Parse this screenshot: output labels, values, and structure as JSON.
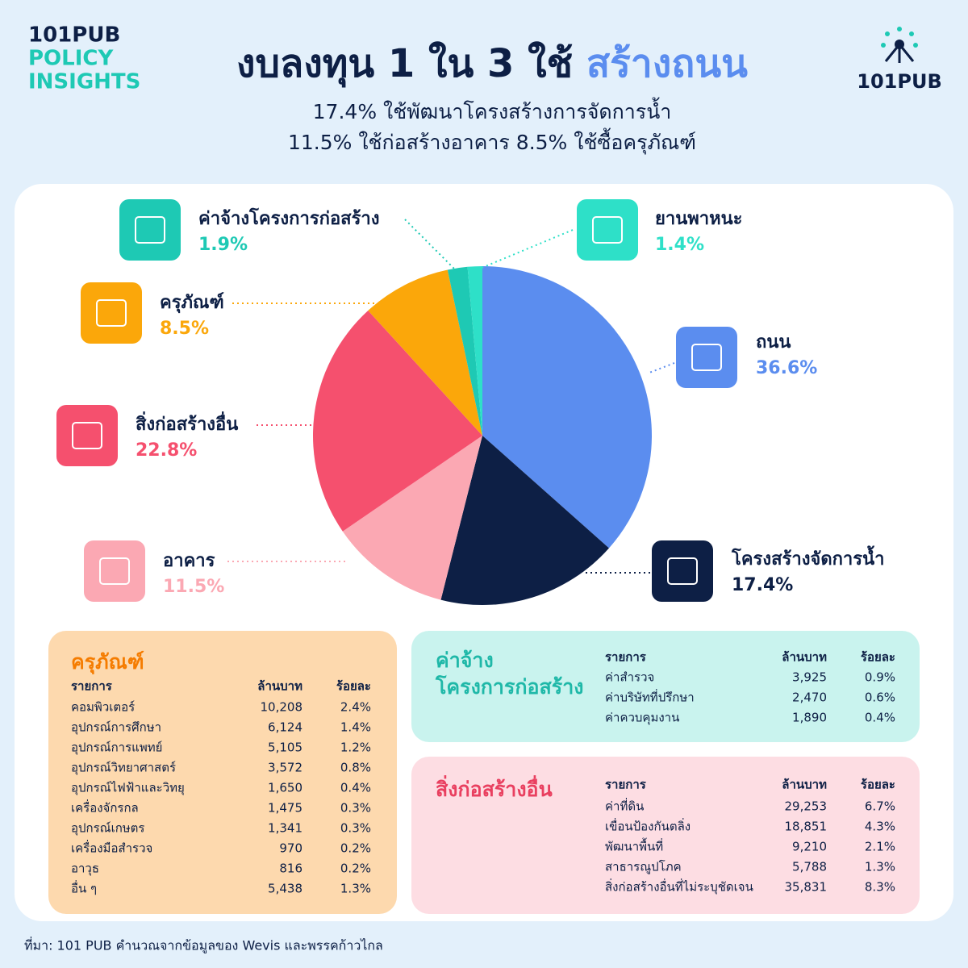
{
  "brand": {
    "lines": [
      "101PUB",
      "POLICY",
      "INSIGHTS"
    ],
    "logo": "101PUB"
  },
  "chart_data": {
    "type": "pie",
    "title": "งบลงทุน 1 ใน 3 ใช้",
    "title_highlight": "สร้างถนน",
    "subtitle": [
      "17.4% ใช้พัฒนาโครงสร้างการจัดการน้ำ",
      "11.5% ใช้ก่อสร้างอาคาร 8.5% ใช้ซื้อครุภัณฑ์"
    ],
    "categories": [
      "ถนน",
      "โครงสร้างจัดการน้ำ",
      "อาคาร",
      "สิ่งก่อสร้างอื่น",
      "ครุภัณฑ์",
      "ค่าจ้างโครงการก่อสร้าง",
      "ยานพาหนะ"
    ],
    "values": [
      36.6,
      17.4,
      11.5,
      22.8,
      8.5,
      1.9,
      1.4
    ],
    "value_labels": [
      "36.6%",
      "17.4%",
      "11.5%",
      "22.8%",
      "8.5%",
      "1.9%",
      "1.4%"
    ],
    "colors": [
      "#5b8def",
      "#0d1f45",
      "#fba8b3",
      "#f5506e",
      "#fba70a",
      "#1ec9b4",
      "#2ee0c8"
    ]
  },
  "tables": [
    {
      "title": [
        "ครุภัณฑ์"
      ],
      "header": [
        "รายการ",
        "ล้านบาท",
        "ร้อยละ"
      ],
      "rows": [
        [
          "คอมพิวเตอร์",
          "10,208",
          "2.4%"
        ],
        [
          "อุปกรณ์การศึกษา",
          "6,124",
          "1.4%"
        ],
        [
          "อุปกรณ์การแพทย์",
          "5,105",
          "1.2%"
        ],
        [
          "อุปกรณ์วิทยาศาสตร์",
          "3,572",
          "0.8%"
        ],
        [
          "อุปกรณ์ไฟฟ้าและวิทยุ",
          "1,650",
          "0.4%"
        ],
        [
          "เครื่องจักรกล",
          "1,475",
          "0.3%"
        ],
        [
          "อุปกรณ์เกษตร",
          "1,341",
          "0.3%"
        ],
        [
          "เครื่องมือสำรวจ",
          "970",
          "0.2%"
        ],
        [
          "อาวุธ",
          "816",
          "0.2%"
        ],
        [
          "อื่น ๆ",
          "5,438",
          "1.3%"
        ]
      ]
    },
    {
      "title": [
        "ค่าจ้าง",
        "โครงการก่อสร้าง"
      ],
      "header": [
        "รายการ",
        "ล้านบาท",
        "ร้อยละ"
      ],
      "rows": [
        [
          "ค่าสำรวจ",
          "3,925",
          "0.9%"
        ],
        [
          "ค่าบริษัทที่ปรึกษา",
          "2,470",
          "0.6%"
        ],
        [
          "ค่าควบคุมงาน",
          "1,890",
          "0.4%"
        ]
      ]
    },
    {
      "title": [
        "สิ่งก่อสร้างอื่น"
      ],
      "header": [
        "รายการ",
        "ล้านบาท",
        "ร้อยละ"
      ],
      "rows": [
        [
          "ค่าที่ดิน",
          "29,253",
          "6.7%"
        ],
        [
          "เขื่อนป้องกันตลิ่ง",
          "18,851",
          "4.3%"
        ],
        [
          "พัฒนาพื้นที่",
          "9,210",
          "2.1%"
        ],
        [
          "สาธารณูปโภค",
          "5,788",
          "1.3%"
        ],
        [
          "สิ่งก่อสร้างอื่นที่ไม่ระบุชัดเจน",
          "35,831",
          "8.3%"
        ]
      ]
    }
  ],
  "source": "ที่มา: 101 PUB คำนวณจากข้อมูลของ Wevis และพรรคก้าวไกล"
}
